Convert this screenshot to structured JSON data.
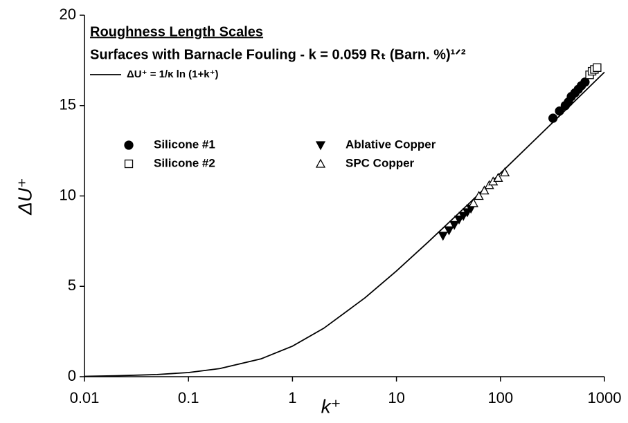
{
  "chart_data": {
    "type": "scatter",
    "title": "Roughness Length Scales",
    "subtitle": "Surfaces with Barnacle Fouling - k = 0.059 Rₜ (Barn. %)¹ᐟ²",
    "xlabel": "k⁺",
    "ylabel": "ΔU⁺",
    "xscale": "log",
    "xlim": [
      0.01,
      1000
    ],
    "ylim": [
      0,
      20
    ],
    "xticks": [
      0.01,
      0.1,
      1,
      10,
      100,
      1000
    ],
    "yticks": [
      0,
      5,
      10,
      15,
      20
    ],
    "series": [
      {
        "name": "ΔU⁺ = 1/κ ln (1+k⁺)",
        "marker": "line",
        "color": "#000000",
        "x": [
          0.01,
          0.02,
          0.05,
          0.1,
          0.2,
          0.5,
          1,
          2,
          5,
          10,
          20,
          50,
          100,
          200,
          500,
          1000
        ],
        "values": [
          0.02,
          0.05,
          0.12,
          0.23,
          0.45,
          0.99,
          1.69,
          2.68,
          4.37,
          5.85,
          7.43,
          9.59,
          11.26,
          12.94,
          15.16,
          16.85
        ]
      },
      {
        "name": "Silicone #1",
        "marker": "circle",
        "filled": true,
        "color": "#000000",
        "x": [
          320,
          370,
          420,
          450,
          480,
          520,
          560,
          600,
          650
        ],
        "values": [
          14.3,
          14.7,
          15.0,
          15.2,
          15.5,
          15.7,
          15.9,
          16.1,
          16.3
        ]
      },
      {
        "name": "Silicone #2",
        "marker": "square",
        "filled": false,
        "color": "#000000",
        "x": [
          720,
          760,
          800,
          850
        ],
        "values": [
          16.7,
          16.9,
          17.0,
          17.1
        ]
      },
      {
        "name": "Ablative Copper",
        "marker": "triangle-down",
        "filled": true,
        "color": "#000000",
        "x": [
          28,
          32,
          36,
          40,
          44,
          48,
          52
        ],
        "values": [
          7.8,
          8.1,
          8.4,
          8.7,
          8.9,
          9.1,
          9.3
        ]
      },
      {
        "name": "SPC Copper",
        "marker": "triangle-up",
        "filled": false,
        "color": "#000000",
        "x": [
          55,
          62,
          70,
          78,
          85,
          95,
          110
        ],
        "values": [
          9.6,
          10.0,
          10.3,
          10.6,
          10.8,
          11.0,
          11.3
        ]
      }
    ]
  }
}
